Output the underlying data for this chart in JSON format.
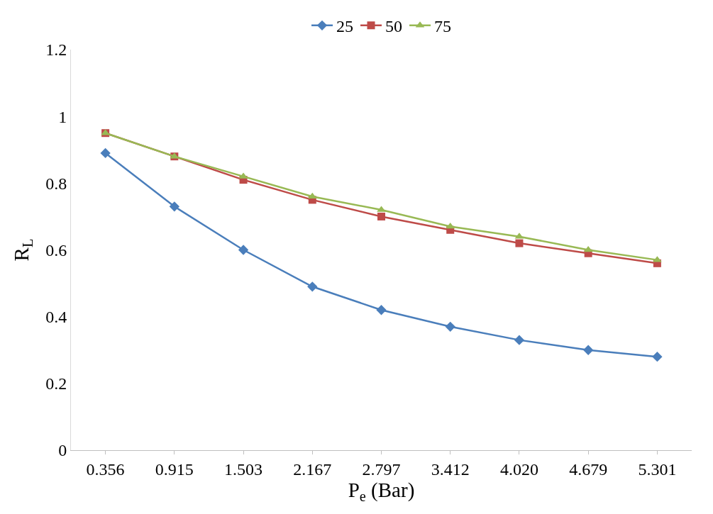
{
  "chart_data": {
    "type": "line",
    "xlabel": "P$_{e}$ (Bar)",
    "ylabel": "R$_{L}$",
    "categories": [
      "0.356",
      "0.915",
      "1.503",
      "2.167",
      "2.797",
      "3.412",
      "4.020",
      "4.679",
      "5.301"
    ],
    "series": [
      {
        "name": "25",
        "color": "#4a7ebb",
        "marker": "diamond",
        "values": [
          0.89,
          0.73,
          0.6,
          0.49,
          0.42,
          0.37,
          0.33,
          0.3,
          0.28
        ]
      },
      {
        "name": "50",
        "color": "#be4b48",
        "marker": "square",
        "values": [
          0.95,
          0.88,
          0.81,
          0.75,
          0.7,
          0.66,
          0.62,
          0.59,
          0.56
        ]
      },
      {
        "name": "75",
        "color": "#98b954",
        "marker": "triangle",
        "values": [
          0.95,
          0.88,
          0.82,
          0.76,
          0.72,
          0.67,
          0.64,
          0.6,
          0.57
        ]
      }
    ],
    "ylim": [
      0,
      1.2
    ],
    "yticks": [
      0,
      0.2,
      0.4,
      0.6,
      0.8,
      1,
      1.2
    ],
    "grid": false,
    "legend": "top",
    "line_style": "solid"
  }
}
